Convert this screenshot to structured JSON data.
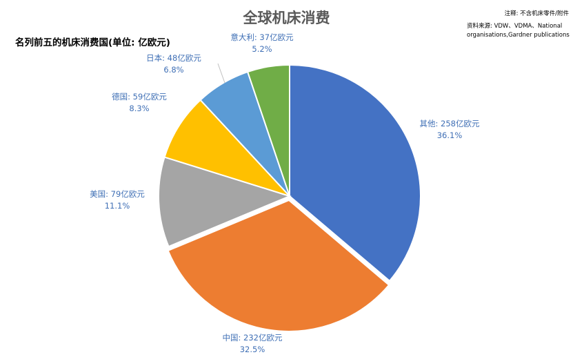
{
  "title": "全球机床消费",
  "subtitle": "名列前五的机床消费国(单位: 亿欧元)",
  "note": "注释: 不含机床零件/附件",
  "source": "资料来源: VDW、VDMA、National organisations,Gardner publications",
  "chart_data": {
    "type": "pie",
    "slices": [
      {
        "name": "其他",
        "value": 258,
        "label": "其他: 258亿欧元",
        "percent": "36.1%",
        "color": "#4472c4"
      },
      {
        "name": "中国",
        "value": 232,
        "label": "中国: 232亿欧元",
        "percent": "32.5%",
        "color": "#ed7d31"
      },
      {
        "name": "美国",
        "value": 79,
        "label": "美国: 79亿欧元",
        "percent": "11.1%",
        "color": "#a5a5a5"
      },
      {
        "name": "德国",
        "value": 59,
        "label": "德国: 59亿欧元",
        "percent": "8.3%",
        "color": "#ffc000"
      },
      {
        "name": "日本",
        "value": 48,
        "label": "日本: 48亿欧元",
        "percent": "6.8%",
        "color": "#5b9bd5"
      },
      {
        "name": "意大利",
        "value": 37,
        "label": "意大利: 37亿欧元",
        "percent": "5.2%",
        "color": "#70ad47"
      }
    ]
  }
}
